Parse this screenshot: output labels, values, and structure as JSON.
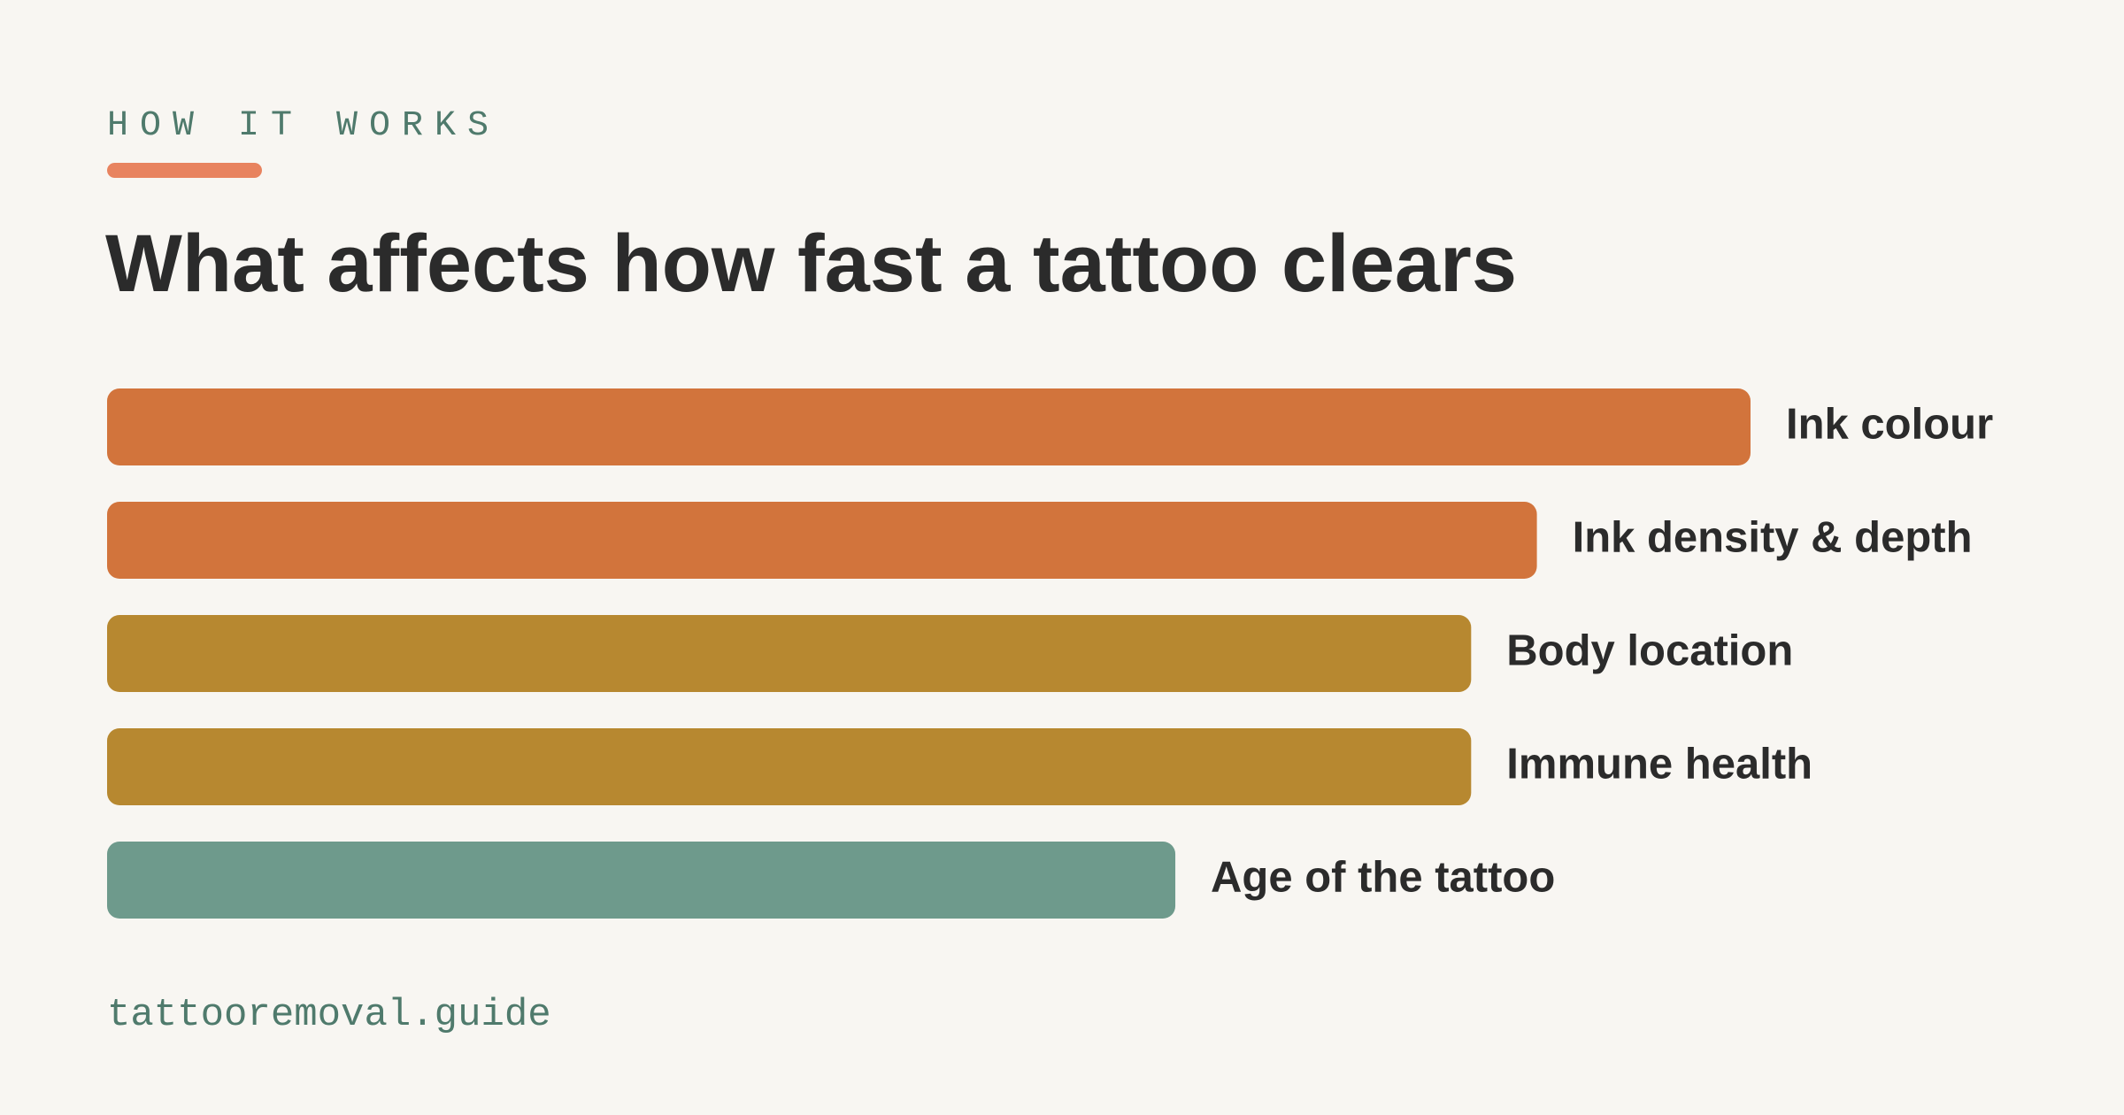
{
  "eyebrow": "HOW IT WORKS",
  "footer": "tattooremoval.guide",
  "chart_data": {
    "type": "bar",
    "orientation": "horizontal",
    "title": "What affects how fast a tattoo clears",
    "categories": [
      "Ink colour",
      "Ink density & depth",
      "Body location",
      "Immune health",
      "Age of the tattoo"
    ],
    "values": [
      100,
      87,
      83,
      83,
      65
    ],
    "colors": [
      "#d2743c",
      "#d2743c",
      "#b78830",
      "#b78830",
      "#6e9a8c"
    ],
    "xlim": [
      0,
      100
    ]
  }
}
